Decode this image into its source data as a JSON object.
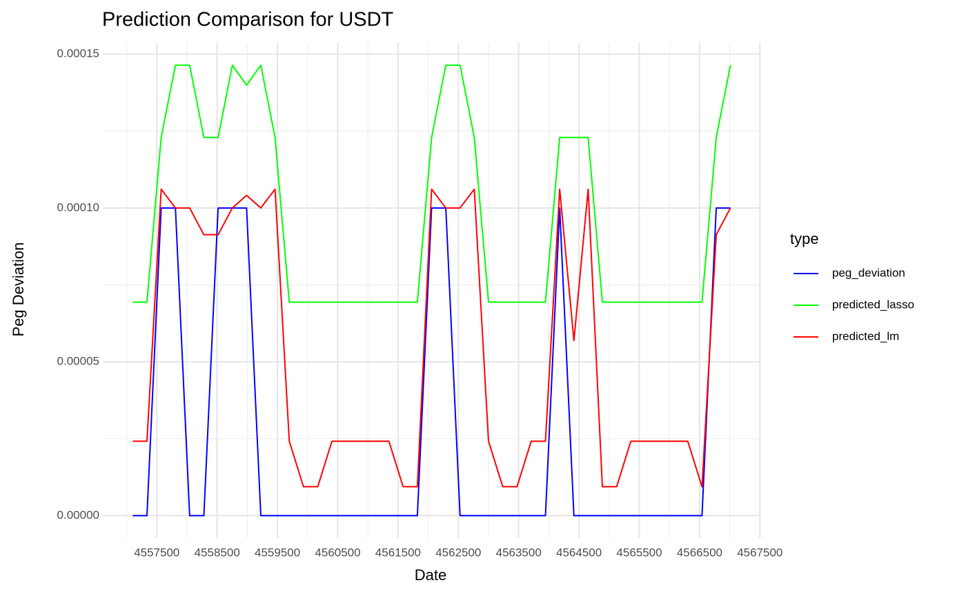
{
  "chart_data": {
    "type": "line",
    "title": "Prediction Comparison for USDT",
    "x_label": "Date",
    "y_label": "Peg Deviation",
    "legend_title": "type",
    "legend_position": "right",
    "grid": true,
    "x": [
      4557100,
      4557336,
      4557572,
      4557808,
      4558044,
      4558280,
      4558516,
      4558752,
      4558988,
      4559224,
      4559460,
      4559696,
      4559932,
      4560168,
      4560404,
      4560640,
      4560876,
      4561112,
      4561348,
      4561584,
      4561820,
      4562056,
      4562292,
      4562528,
      4562764,
      4563000,
      4563236,
      4563472,
      4563708,
      4563944,
      4564180,
      4564416,
      4564652,
      4564888,
      4565124,
      4565360,
      4565596,
      4565832,
      4566068,
      4566304,
      4566540,
      4566776,
      4567012
    ],
    "series": [
      {
        "name": "peg_deviation",
        "color": "#0000ff",
        "values": [
          0,
          0,
          0.0001,
          0.0001,
          0,
          0,
          0.0001,
          0.0001,
          0.0001,
          0,
          0,
          0,
          0,
          0,
          0,
          0,
          0,
          0,
          0,
          0,
          0,
          0.0001,
          0.0001,
          0,
          0,
          0,
          0,
          0,
          0,
          0,
          0.0001,
          0,
          0,
          0,
          0,
          0,
          0,
          0,
          0,
          0,
          0,
          0.0001,
          0.0001
        ]
      },
      {
        "name": "predicted_lasso",
        "color": "#00ff00",
        "values": [
          6.94e-05,
          6.94e-05,
          0.0001229,
          0.0001464,
          0.0001464,
          0.0001229,
          0.0001229,
          0.0001464,
          0.0001399,
          0.0001464,
          0.0001229,
          6.94e-05,
          6.94e-05,
          6.94e-05,
          6.94e-05,
          6.94e-05,
          6.94e-05,
          6.94e-05,
          6.94e-05,
          6.94e-05,
          6.94e-05,
          0.0001229,
          0.0001464,
          0.0001464,
          0.0001229,
          6.94e-05,
          6.94e-05,
          6.94e-05,
          6.94e-05,
          6.94e-05,
          0.0001229,
          0.0001229,
          0.0001229,
          6.94e-05,
          6.94e-05,
          6.94e-05,
          6.94e-05,
          6.94e-05,
          6.94e-05,
          6.94e-05,
          6.94e-05,
          0.0001229,
          0.0001464
        ]
      },
      {
        "name": "predicted_lm",
        "color": "#ff0000",
        "values": [
          2.42e-05,
          2.42e-05,
          0.0001061,
          0.0001,
          0.0001,
          9.13e-05,
          9.13e-05,
          0.0001,
          0.0001041,
          0.0001,
          0.0001061,
          2.42e-05,
          9.4e-06,
          9.4e-06,
          2.42e-05,
          2.42e-05,
          2.42e-05,
          2.42e-05,
          2.42e-05,
          9.4e-06,
          9.4e-06,
          0.0001061,
          0.0001,
          0.0001,
          0.0001061,
          2.42e-05,
          9.4e-06,
          9.4e-06,
          2.42e-05,
          2.42e-05,
          0.0001061,
          5.69e-05,
          0.0001061,
          9.4e-06,
          9.4e-06,
          2.42e-05,
          2.42e-05,
          2.42e-05,
          2.42e-05,
          2.42e-05,
          9.4e-06,
          9.13e-05,
          0.0001
        ]
      }
    ],
    "xlim": [
      4556604,
      4567508
    ],
    "xticks": [
      4557500,
      4558500,
      4559500,
      4560500,
      4561500,
      4562500,
      4563500,
      4564500,
      4565500,
      4566500,
      4567500
    ],
    "xminor_ticks": [
      4557000,
      4558000,
      4559000,
      4560000,
      4561000,
      4562000,
      4563000,
      4564000,
      4565000,
      4566000,
      4567000
    ],
    "ylim": [
      -7.3e-06,
      0.0001537
    ],
    "yticks": [
      {
        "value": 0,
        "label": "0.00000"
      },
      {
        "value": 5e-05,
        "label": "0.00005"
      },
      {
        "value": 0.0001,
        "label": "0.00010"
      },
      {
        "value": 0.00015,
        "label": "0.00015"
      }
    ],
    "yminor_ticks": [
      2.5e-05,
      7.5e-05,
      0.000125
    ]
  }
}
